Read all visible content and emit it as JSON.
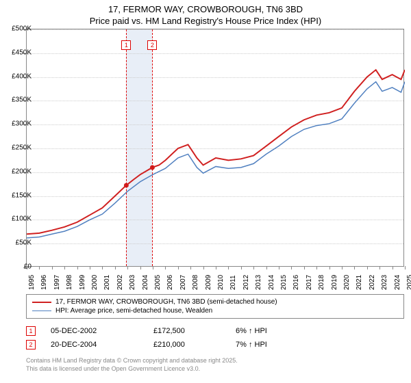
{
  "title": {
    "line1": "17, FERMOR WAY, CROWBOROUGH, TN6 3BD",
    "line2": "Price paid vs. HM Land Registry's House Price Index (HPI)"
  },
  "chart": {
    "type": "line",
    "ylim": [
      0,
      500000
    ],
    "ytick_step": 50000,
    "ytick_labels": [
      "£0",
      "£50K",
      "£100K",
      "£150K",
      "£200K",
      "£250K",
      "£300K",
      "£350K",
      "£400K",
      "£450K",
      "£500K"
    ],
    "xlim": [
      1995,
      2025
    ],
    "xtick_step": 1,
    "xtick_labels": [
      "1995",
      "1996",
      "1997",
      "1998",
      "1999",
      "2000",
      "2001",
      "2002",
      "2003",
      "2004",
      "2005",
      "2006",
      "2007",
      "2008",
      "2009",
      "2010",
      "2011",
      "2012",
      "2013",
      "2014",
      "2015",
      "2016",
      "2017",
      "2018",
      "2019",
      "2020",
      "2021",
      "2022",
      "2023",
      "2024",
      "2025"
    ],
    "grid_color": "#cccccc",
    "background_color": "#ffffff",
    "highlight_band": {
      "x_start": 2002.9,
      "x_end": 2004.97,
      "color": "#e8eef7"
    },
    "markers": [
      {
        "label": "1",
        "x": 2002.9,
        "y_label_top": 58
      },
      {
        "label": "2",
        "x": 2004.97,
        "y_label_top": 58
      }
    ],
    "series": [
      {
        "name": "17, FERMOR WAY, CROWBOROUGH, TN6 3BD (semi-detached house)",
        "color": "#d02020",
        "line_width": 2,
        "data": [
          [
            1995,
            70000
          ],
          [
            1996,
            72000
          ],
          [
            1997,
            78000
          ],
          [
            1998,
            85000
          ],
          [
            1999,
            95000
          ],
          [
            2000,
            110000
          ],
          [
            2001,
            125000
          ],
          [
            2002,
            150000
          ],
          [
            2002.9,
            172500
          ],
          [
            2003.5,
            185000
          ],
          [
            2004,
            195000
          ],
          [
            2004.97,
            210000
          ],
          [
            2005.5,
            215000
          ],
          [
            2006,
            225000
          ],
          [
            2007,
            250000
          ],
          [
            2007.8,
            258000
          ],
          [
            2008.5,
            230000
          ],
          [
            2009,
            215000
          ],
          [
            2010,
            230000
          ],
          [
            2011,
            225000
          ],
          [
            2012,
            228000
          ],
          [
            2013,
            235000
          ],
          [
            2014,
            255000
          ],
          [
            2015,
            275000
          ],
          [
            2016,
            295000
          ],
          [
            2017,
            310000
          ],
          [
            2018,
            320000
          ],
          [
            2019,
            325000
          ],
          [
            2020,
            335000
          ],
          [
            2021,
            370000
          ],
          [
            2022,
            400000
          ],
          [
            2022.7,
            415000
          ],
          [
            2023.2,
            395000
          ],
          [
            2024,
            405000
          ],
          [
            2024.7,
            395000
          ],
          [
            2025,
            415000
          ]
        ],
        "dots": [
          [
            2002.9,
            172500
          ],
          [
            2004.97,
            210000
          ]
        ]
      },
      {
        "name": "HPI: Average price, semi-detached house, Wealden",
        "color": "#5080c0",
        "line_width": 1.5,
        "data": [
          [
            1995,
            62000
          ],
          [
            1996,
            64000
          ],
          [
            1997,
            70000
          ],
          [
            1998,
            76000
          ],
          [
            1999,
            86000
          ],
          [
            2000,
            100000
          ],
          [
            2001,
            112000
          ],
          [
            2002,
            135000
          ],
          [
            2003,
            160000
          ],
          [
            2004,
            180000
          ],
          [
            2005,
            195000
          ],
          [
            2006,
            208000
          ],
          [
            2007,
            230000
          ],
          [
            2007.8,
            238000
          ],
          [
            2008.5,
            210000
          ],
          [
            2009,
            198000
          ],
          [
            2010,
            212000
          ],
          [
            2011,
            208000
          ],
          [
            2012,
            210000
          ],
          [
            2013,
            218000
          ],
          [
            2014,
            238000
          ],
          [
            2015,
            255000
          ],
          [
            2016,
            275000
          ],
          [
            2017,
            290000
          ],
          [
            2018,
            298000
          ],
          [
            2019,
            302000
          ],
          [
            2020,
            312000
          ],
          [
            2021,
            345000
          ],
          [
            2022,
            375000
          ],
          [
            2022.7,
            390000
          ],
          [
            2023.2,
            370000
          ],
          [
            2024,
            378000
          ],
          [
            2024.7,
            368000
          ],
          [
            2025,
            390000
          ]
        ]
      }
    ]
  },
  "legend": {
    "items": [
      {
        "label": "17, FERMOR WAY, CROWBOROUGH, TN6 3BD (semi-detached house)",
        "color": "#d02020",
        "width": 2
      },
      {
        "label": "HPI: Average price, semi-detached house, Wealden",
        "color": "#5080c0",
        "width": 1.5
      }
    ]
  },
  "sales": [
    {
      "marker": "1",
      "date": "05-DEC-2002",
      "price": "£172,500",
      "pct": "6% ↑ HPI"
    },
    {
      "marker": "2",
      "date": "20-DEC-2004",
      "price": "£210,000",
      "pct": "7% ↑ HPI"
    }
  ],
  "footer": {
    "line1": "Contains HM Land Registry data © Crown copyright and database right 2025.",
    "line2": "This data is licensed under the Open Government Licence v3.0."
  }
}
